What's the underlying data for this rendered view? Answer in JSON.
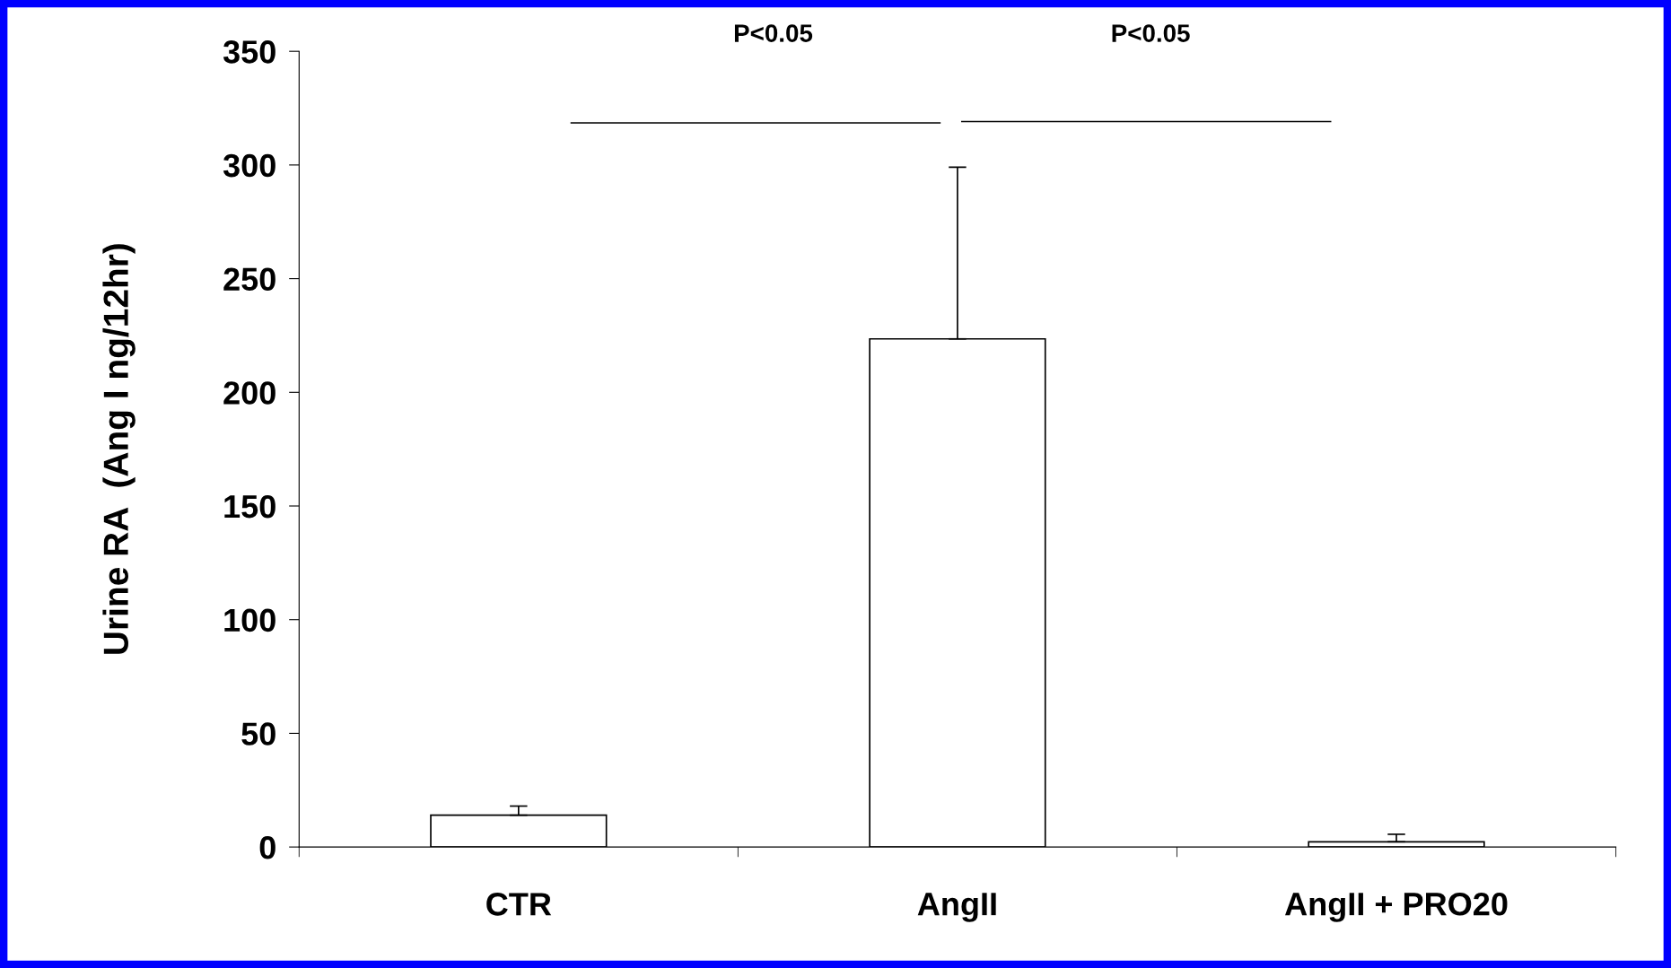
{
  "chart_data": {
    "type": "bar",
    "ylabel": "Urine RA  (Ang I ng/12hr)",
    "categories": [
      "CTR",
      "AngII",
      "AngII + PRO20"
    ],
    "values": [
      14,
      223.5,
      2.3
    ],
    "errors": [
      [
        14,
        18
      ],
      [
        223.5,
        299
      ],
      [
        2.3,
        5.6
      ]
    ],
    "color": "#ffffff",
    "ylim": [
      0,
      350
    ],
    "yticks": [
      0,
      50,
      100,
      150,
      200,
      250,
      300,
      350
    ],
    "grid": false,
    "annotations": [
      "P<0.05",
      "P<0.05"
    ]
  }
}
